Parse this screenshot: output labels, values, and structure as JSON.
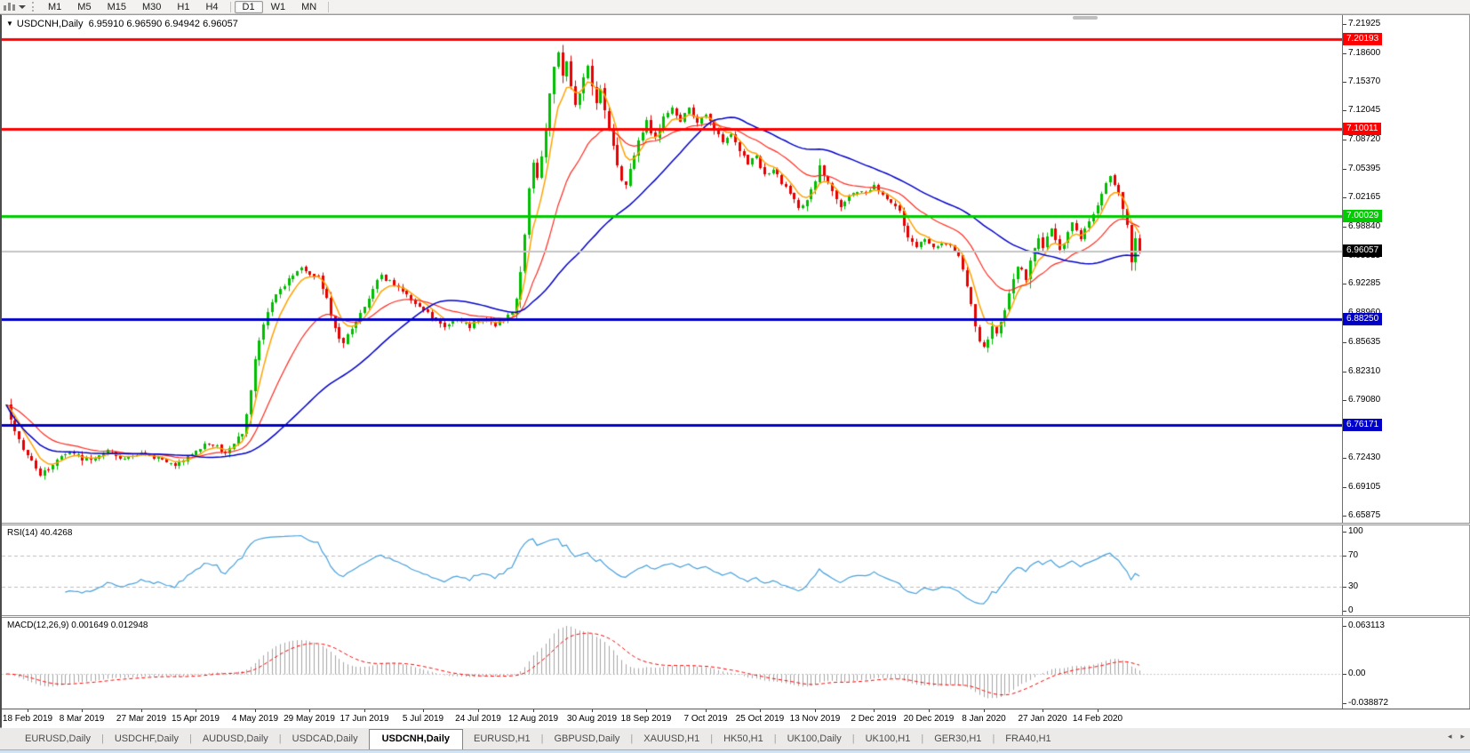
{
  "toolbar": {
    "chart_icon": "candlestick-chart-icon",
    "dropdown_caret": "chevron-down",
    "timeframes": [
      {
        "label": "M1",
        "active": false
      },
      {
        "label": "M5",
        "active": false
      },
      {
        "label": "M15",
        "active": false
      },
      {
        "label": "M30",
        "active": false
      },
      {
        "label": "H1",
        "active": false
      },
      {
        "label": "H4",
        "active": false
      },
      {
        "label": "D1",
        "active": true
      },
      {
        "label": "W1",
        "active": false
      },
      {
        "label": "MN",
        "active": false
      }
    ]
  },
  "ohlc": {
    "marker": "▼",
    "symbol": "USDCNH,Daily",
    "values": "6.95910 6.96590 6.94942 6.96057"
  },
  "chart_data": {
    "type": "candlestick",
    "symbol": "USDCNH",
    "timeframe": "Daily",
    "n_candles": 270,
    "colors": {
      "bull": "#00BE00",
      "bear": "#E60000",
      "ma_fast": "#FFA200",
      "ma_mid": "#FF2A1E",
      "ma_slow": "#0000C8",
      "rsi_line": "#46A0DC",
      "macd_hist": "#A4A4A4",
      "macd_signal": "#FF0000",
      "level_dash": "#BDBDBD",
      "current_line": "#C4C4C4"
    },
    "price_axis": {
      "min": 6.6506,
      "max": 7.2294,
      "ticks": [
        "7.21925",
        "7.18600",
        "7.15370",
        "7.12045",
        "7.08720",
        "7.05395",
        "7.02165",
        "6.98840",
        "6.95515",
        "6.92285",
        "6.88960",
        "6.85635",
        "6.82310",
        "6.79080",
        "6.75755",
        "6.72430",
        "6.69105",
        "6.65875"
      ]
    },
    "hlines": [
      {
        "price": 7.20193,
        "label": "7.20193",
        "color": "#FF0000",
        "thickness": 3
      },
      {
        "price": 7.10011,
        "label": "7.10011",
        "color": "#FF0000",
        "thickness": 3
      },
      {
        "price": 7.00029,
        "label": "7.00029",
        "color": "#00CC00",
        "thickness": 3
      },
      {
        "price": 6.8825,
        "label": "6.88250",
        "color": "#0000C8",
        "thickness": 3
      },
      {
        "price": 6.76171,
        "label": "6.76171",
        "color": "#0000C8",
        "thickness": 3
      }
    ],
    "current_price": {
      "value": 6.96057,
      "label": "6.96057",
      "badge_color": "#000000"
    },
    "moving_averages": [
      {
        "kind": "ema",
        "period": 6,
        "color": "#FFA200",
        "width": 1.5
      },
      {
        "kind": "ema",
        "period": 21,
        "color": "#FF2A1E",
        "width": 1.2
      },
      {
        "kind": "sma",
        "period": 45,
        "color": "#0000C8",
        "width": 1.5
      }
    ],
    "close_waypoints": [
      [
        0,
        6.783
      ],
      [
        2,
        6.757
      ],
      [
        4,
        6.735
      ],
      [
        6,
        6.721
      ],
      [
        8,
        6.706
      ],
      [
        10,
        6.711
      ],
      [
        12,
        6.722
      ],
      [
        14,
        6.729
      ],
      [
        16,
        6.731
      ],
      [
        18,
        6.723
      ],
      [
        20,
        6.721
      ],
      [
        22,
        6.729
      ],
      [
        24,
        6.734
      ],
      [
        26,
        6.727
      ],
      [
        28,
        6.722
      ],
      [
        30,
        6.727
      ],
      [
        32,
        6.731
      ],
      [
        34,
        6.726
      ],
      [
        36,
        6.724
      ],
      [
        38,
        6.72
      ],
      [
        40,
        6.715
      ],
      [
        42,
        6.722
      ],
      [
        44,
        6.729
      ],
      [
        46,
        6.735
      ],
      [
        48,
        6.742
      ],
      [
        50,
        6.737
      ],
      [
        52,
        6.731
      ],
      [
        54,
        6.741
      ],
      [
        56,
        6.752
      ],
      [
        57,
        6.776
      ],
      [
        58,
        6.8
      ],
      [
        59,
        6.836
      ],
      [
        60,
        6.858
      ],
      [
        61,
        6.878
      ],
      [
        62,
        6.89
      ],
      [
        63,
        6.902
      ],
      [
        64,
        6.91
      ],
      [
        66,
        6.922
      ],
      [
        68,
        6.933
      ],
      [
        70,
        6.943
      ],
      [
        72,
        6.932
      ],
      [
        74,
        6.93
      ],
      [
        76,
        6.905
      ],
      [
        77,
        6.888
      ],
      [
        78,
        6.872
      ],
      [
        79,
        6.862
      ],
      [
        80,
        6.856
      ],
      [
        82,
        6.872
      ],
      [
        84,
        6.888
      ],
      [
        86,
        6.906
      ],
      [
        88,
        6.928
      ],
      [
        89,
        6.932
      ],
      [
        90,
        6.928
      ],
      [
        92,
        6.922
      ],
      [
        94,
        6.913
      ],
      [
        96,
        6.906
      ],
      [
        98,
        6.899
      ],
      [
        100,
        6.89
      ],
      [
        102,
        6.88
      ],
      [
        104,
        6.873
      ],
      [
        106,
        6.879
      ],
      [
        108,
        6.881
      ],
      [
        110,
        6.875
      ],
      [
        112,
        6.881
      ],
      [
        114,
        6.883
      ],
      [
        116,
        6.877
      ],
      [
        118,
        6.882
      ],
      [
        120,
        6.889
      ],
      [
        121,
        6.905
      ],
      [
        122,
        6.935
      ],
      [
        123,
        6.98
      ],
      [
        124,
        7.03
      ],
      [
        125,
        7.06
      ],
      [
        126,
        7.045
      ],
      [
        127,
        7.07
      ],
      [
        128,
        7.1
      ],
      [
        129,
        7.14
      ],
      [
        130,
        7.17
      ],
      [
        131,
        7.185
      ],
      [
        132,
        7.16
      ],
      [
        133,
        7.175
      ],
      [
        134,
        7.15
      ],
      [
        135,
        7.125
      ],
      [
        136,
        7.14
      ],
      [
        137,
        7.16
      ],
      [
        138,
        7.17
      ],
      [
        139,
        7.15
      ],
      [
        140,
        7.13
      ],
      [
        141,
        7.145
      ],
      [
        142,
        7.12
      ],
      [
        143,
        7.1
      ],
      [
        144,
        7.08
      ],
      [
        145,
        7.06
      ],
      [
        146,
        7.042
      ],
      [
        147,
        7.035
      ],
      [
        148,
        7.055
      ],
      [
        149,
        7.07
      ],
      [
        150,
        7.085
      ],
      [
        151,
        7.098
      ],
      [
        152,
        7.108
      ],
      [
        153,
        7.096
      ],
      [
        154,
        7.09
      ],
      [
        155,
        7.102
      ],
      [
        156,
        7.112
      ],
      [
        157,
        7.118
      ],
      [
        158,
        7.125
      ],
      [
        159,
        7.115
      ],
      [
        160,
        7.108
      ],
      [
        161,
        7.118
      ],
      [
        162,
        7.126
      ],
      [
        163,
        7.112
      ],
      [
        164,
        7.105
      ],
      [
        166,
        7.118
      ],
      [
        168,
        7.1
      ],
      [
        170,
        7.085
      ],
      [
        172,
        7.093
      ],
      [
        174,
        7.075
      ],
      [
        176,
        7.06
      ],
      [
        178,
        7.068
      ],
      [
        179,
        7.056
      ],
      [
        180,
        7.046
      ],
      [
        182,
        7.054
      ],
      [
        184,
        7.038
      ],
      [
        186,
        7.026
      ],
      [
        188,
        7.008
      ],
      [
        190,
        7.02
      ],
      [
        192,
        7.04
      ],
      [
        193,
        7.06
      ],
      [
        194,
        7.046
      ],
      [
        196,
        7.028
      ],
      [
        198,
        7.012
      ],
      [
        200,
        7.022
      ],
      [
        202,
        7.03
      ],
      [
        204,
        7.028
      ],
      [
        206,
        7.034
      ],
      [
        208,
        7.024
      ],
      [
        210,
        7.014
      ],
      [
        212,
        7.008
      ],
      [
        213,
        6.988
      ],
      [
        214,
        6.974
      ],
      [
        216,
        6.966
      ],
      [
        218,
        6.972
      ],
      [
        220,
        6.964
      ],
      [
        222,
        6.97
      ],
      [
        224,
        6.966
      ],
      [
        226,
        6.956
      ],
      [
        227,
        6.94
      ],
      [
        228,
        6.92
      ],
      [
        229,
        6.898
      ],
      [
        230,
        6.876
      ],
      [
        231,
        6.856
      ],
      [
        232,
        6.849
      ],
      [
        233,
        6.86
      ],
      [
        234,
        6.874
      ],
      [
        235,
        6.868
      ],
      [
        236,
        6.88
      ],
      [
        237,
        6.894
      ],
      [
        238,
        6.91
      ],
      [
        239,
        6.928
      ],
      [
        240,
        6.944
      ],
      [
        241,
        6.938
      ],
      [
        242,
        6.928
      ],
      [
        243,
        6.948
      ],
      [
        244,
        6.962
      ],
      [
        245,
        6.974
      ],
      [
        246,
        6.966
      ],
      [
        247,
        6.978
      ],
      [
        248,
        6.986
      ],
      [
        249,
        6.974
      ],
      [
        250,
        6.96
      ],
      [
        251,
        6.968
      ],
      [
        252,
        6.984
      ],
      [
        253,
        6.994
      ],
      [
        254,
        6.986
      ],
      [
        255,
        6.976
      ],
      [
        256,
        6.986
      ],
      [
        257,
        6.994
      ],
      [
        258,
        7.002
      ],
      [
        259,
        7.012
      ],
      [
        260,
        7.026
      ],
      [
        261,
        7.04
      ],
      [
        262,
        7.047
      ],
      [
        263,
        7.036
      ],
      [
        264,
        7.026
      ],
      [
        265,
        7.01
      ],
      [
        266,
        6.99
      ],
      [
        267,
        6.948
      ],
      [
        268,
        6.975
      ],
      [
        269,
        6.96057
      ]
    ],
    "x_labels": [
      {
        "idx": 5,
        "label": "18 Feb 2019"
      },
      {
        "idx": 18,
        "label": "8 Mar 2019"
      },
      {
        "idx": 32,
        "label": "27 Mar 2019"
      },
      {
        "idx": 45,
        "label": "15 Apr 2019"
      },
      {
        "idx": 59,
        "label": "4 May 2019"
      },
      {
        "idx": 72,
        "label": "29 May 2019"
      },
      {
        "idx": 85,
        "label": "17 Jun 2019"
      },
      {
        "idx": 99,
        "label": "5 Jul 2019"
      },
      {
        "idx": 112,
        "label": "24 Jul 2019"
      },
      {
        "idx": 125,
        "label": "12 Aug 2019"
      },
      {
        "idx": 139,
        "label": "30 Aug 2019"
      },
      {
        "idx": 152,
        "label": "18 Sep 2019"
      },
      {
        "idx": 166,
        "label": "7 Oct 2019"
      },
      {
        "idx": 179,
        "label": "25 Oct 2019"
      },
      {
        "idx": 192,
        "label": "13 Nov 2019"
      },
      {
        "idx": 206,
        "label": "2 Dec 2019"
      },
      {
        "idx": 219,
        "label": "20 Dec 2019"
      },
      {
        "idx": 232,
        "label": "8 Jan 2020"
      },
      {
        "idx": 246,
        "label": "27 Jan 2020"
      },
      {
        "idx": 259,
        "label": "14 Feb 2020"
      }
    ],
    "rsi": {
      "label": "RSI(14) 40.4268",
      "period": 14,
      "last_value": 40.4268,
      "levels": [
        70,
        30
      ],
      "axis": [
        {
          "v": 100,
          "label": "100"
        },
        {
          "v": 70,
          "label": "70"
        },
        {
          "v": 30,
          "label": "30"
        },
        {
          "v": 0,
          "label": "0"
        }
      ]
    },
    "macd": {
      "label": "MACD(12,26,9) 0.001649 0.012948",
      "fast": 12,
      "slow": 26,
      "signal": 9,
      "last_macd": 0.001649,
      "last_signal": 0.012948,
      "axis": [
        {
          "v": 0.063113,
          "label": "0.063113"
        },
        {
          "v": 0,
          "label": "0.00"
        },
        {
          "v": -0.038872,
          "label": "-0.038872"
        }
      ]
    }
  },
  "tabs": {
    "separator": "|",
    "items": [
      {
        "label": "EURUSD,Daily",
        "active": false
      },
      {
        "label": "USDCHF,Daily",
        "active": false
      },
      {
        "label": "AUDUSD,Daily",
        "active": false
      },
      {
        "label": "USDCAD,Daily",
        "active": false
      },
      {
        "label": "USDCNH,Daily",
        "active": true
      },
      {
        "label": "EURUSD,H1",
        "active": false
      },
      {
        "label": "GBPUSD,Daily",
        "active": false
      },
      {
        "label": "XAUUSD,H1",
        "active": false
      },
      {
        "label": "HK50,H1",
        "active": false
      },
      {
        "label": "UK100,Daily",
        "active": false
      },
      {
        "label": "UK100,H1",
        "active": false
      },
      {
        "label": "GER30,H1",
        "active": false
      },
      {
        "label": "FRA40,H1",
        "active": false
      }
    ],
    "nav_left": "◂",
    "nav_right": "▸"
  }
}
